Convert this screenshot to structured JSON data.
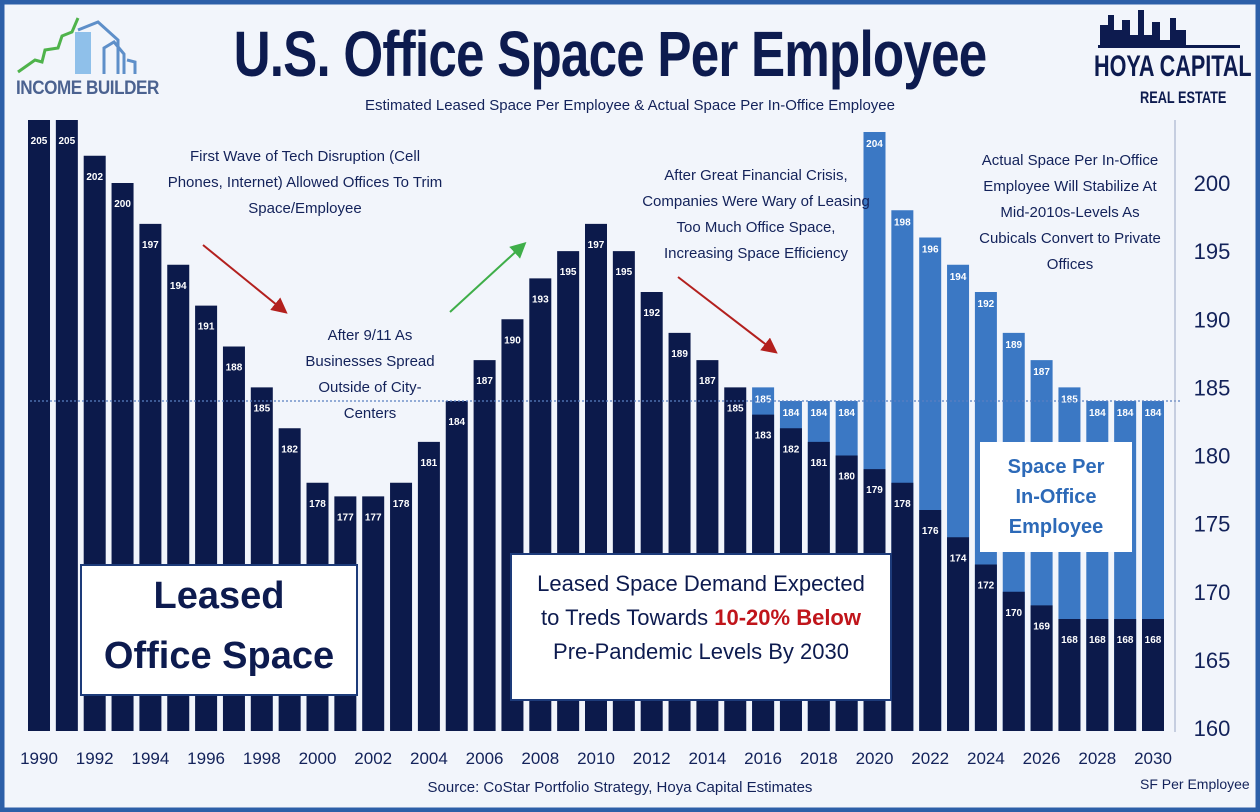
{
  "title": "U.S. Office Space Per Employee",
  "subtitle": "Estimated Leased Space Per Employee & Actual Space Per In-Office Employee",
  "logo_left": "INCOME BUILDER",
  "logo_right": {
    "line1": "HOYA CAPITAL",
    "line2": "REAL ESTATE"
  },
  "source": "Source: CoStar Portfolio Strategy, Hoya Capital Estimates",
  "annotations": {
    "tech": "First Wave of Tech Disruption (Cell Phones, Internet) Allowed Offices To Trim Space/Employee",
    "nine_eleven": "After 9/11 As Businesses Spread Outside of City-Centers",
    "gfc": "After Great Financial Crisis, Companies Were Wary of Leasing Too Much Office Space, Increasing Space Efficiency",
    "stabilize": "Actual Space Per In-Office Employee Will Stabilize At Mid-2010s-Levels As Cubicals Convert to Private Offices",
    "leased_box": {
      "line1": "Leased",
      "line2": "Office Space"
    },
    "demand_box": {
      "part1": "Leased Space Demand Expected to Treds Towards ",
      "highlight": "10-20% Below",
      "part2": " Pre-Pandemic Levels By 2030"
    },
    "inoffice_box": {
      "line1": "Space Per",
      "line2": "In-Office",
      "line3": "Employee"
    }
  },
  "colors": {
    "leased": "#0c1a4b",
    "in_office": "#3b78c4",
    "highlight": "#c0151b",
    "title": "#0d1b4f",
    "arrow_down": "#b3201e",
    "arrow_up": "#3fae49"
  },
  "chart_data": {
    "type": "bar",
    "title": "U.S. Office Space Per Employee",
    "ylabel": "SF Per Employee",
    "ylim": [
      160,
      205
    ],
    "yticks": [
      160,
      165,
      170,
      175,
      180,
      185,
      190,
      195,
      200
    ],
    "reference_line": 184,
    "categories": [
      1990,
      1991,
      1992,
      1993,
      1994,
      1995,
      1996,
      1997,
      1998,
      1999,
      2000,
      2001,
      2002,
      2003,
      2004,
      2005,
      2006,
      2007,
      2008,
      2009,
      2010,
      2011,
      2012,
      2013,
      2014,
      2015,
      2016,
      2017,
      2018,
      2019,
      2020,
      2021,
      2022,
      2023,
      2024,
      2025,
      2026,
      2027,
      2028,
      2029,
      2030
    ],
    "xtick_labels": [
      "1990",
      "1992",
      "1994",
      "1996",
      "1998",
      "2000",
      "2002",
      "2004",
      "2006",
      "2008",
      "2010",
      "2012",
      "2014",
      "2016",
      "2018",
      "2020",
      "2022",
      "2024",
      "2026",
      "2028",
      "2030"
    ],
    "series": [
      {
        "key": "leased",
        "values": [
          205,
          205,
          202,
          200,
          197,
          194,
          191,
          188,
          185,
          182,
          178,
          177,
          177,
          178,
          181,
          184,
          187,
          190,
          193,
          195,
          197,
          195,
          192,
          189,
          187,
          185,
          183,
          182,
          181,
          180,
          179,
          178,
          176,
          174,
          172,
          170,
          169,
          168,
          168,
          168,
          168
        ]
      },
      {
        "key": "in_office",
        "values": [
          null,
          null,
          null,
          null,
          null,
          null,
          null,
          null,
          null,
          null,
          null,
          null,
          null,
          null,
          null,
          null,
          null,
          null,
          null,
          null,
          null,
          null,
          null,
          null,
          null,
          null,
          185,
          184,
          184,
          184,
          204,
          198,
          196,
          194,
          192,
          189,
          187,
          185,
          184,
          184,
          184
        ]
      }
    ]
  }
}
